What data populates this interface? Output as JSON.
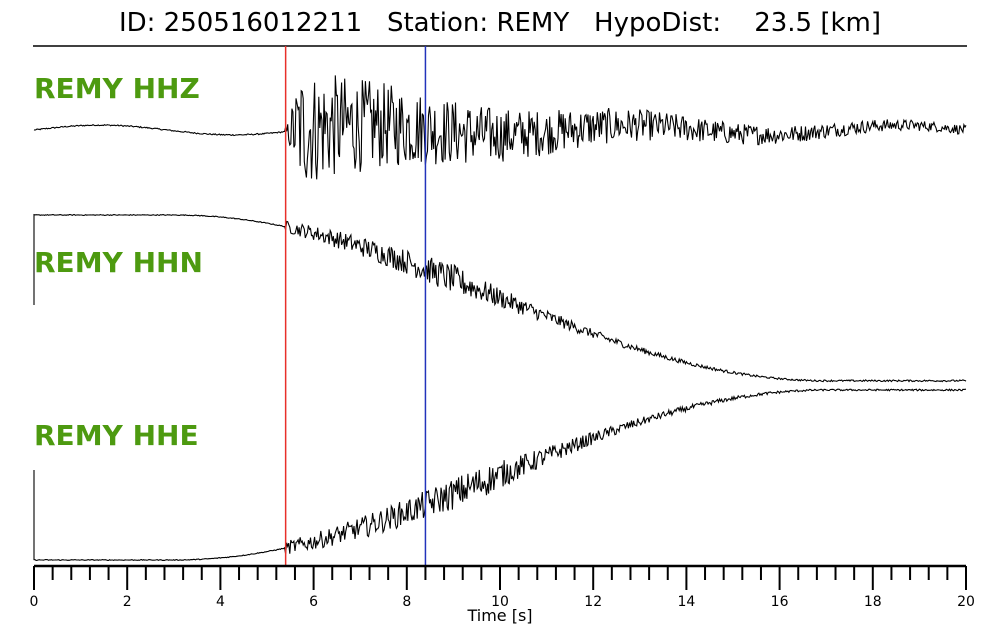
{
  "title": "ID: 250516012211   Station: REMY   HypoDist:    23.5 [km]",
  "chart_data": {
    "type": "line",
    "xlabel": "Time [s]",
    "ylabel": "",
    "xlim": [
      0,
      20
    ],
    "x_ticks_major": [
      0,
      2,
      4,
      6,
      8,
      10,
      12,
      14,
      16,
      18,
      20
    ],
    "x_tick_minor_step": 0.4,
    "grid": false,
    "picks": [
      {
        "phase": "P",
        "time": 5.4,
        "color": "#e8302a"
      },
      {
        "phase": "S",
        "time": 8.4,
        "color": "#2233bb"
      }
    ],
    "series": [
      {
        "name": "REMY HHZ",
        "signal_onset_s": 5.4,
        "noise_amplitude": 0.1,
        "signal_amplitude": 1.0,
        "max_amplitude_time_s": 5.7,
        "coda_end_amplitude": 0.08
      },
      {
        "name": "REMY HHN",
        "signal_onset_s": 5.4,
        "start_offset": 1.0,
        "end_offset": -0.95,
        "noise_amplitude": 0.02,
        "signal_amplitude": 0.35,
        "max_amplitude_time_s": 9.0
      },
      {
        "name": "REMY HHE",
        "signal_onset_s": 5.4,
        "start_offset": -1.0,
        "end_offset": 1.0,
        "noise_amplitude": 0.02,
        "signal_amplitude": 0.4,
        "max_amplitude_time_s": 9.5
      }
    ],
    "colors": {
      "trace": "#000000",
      "label": "#4d9a10"
    }
  }
}
